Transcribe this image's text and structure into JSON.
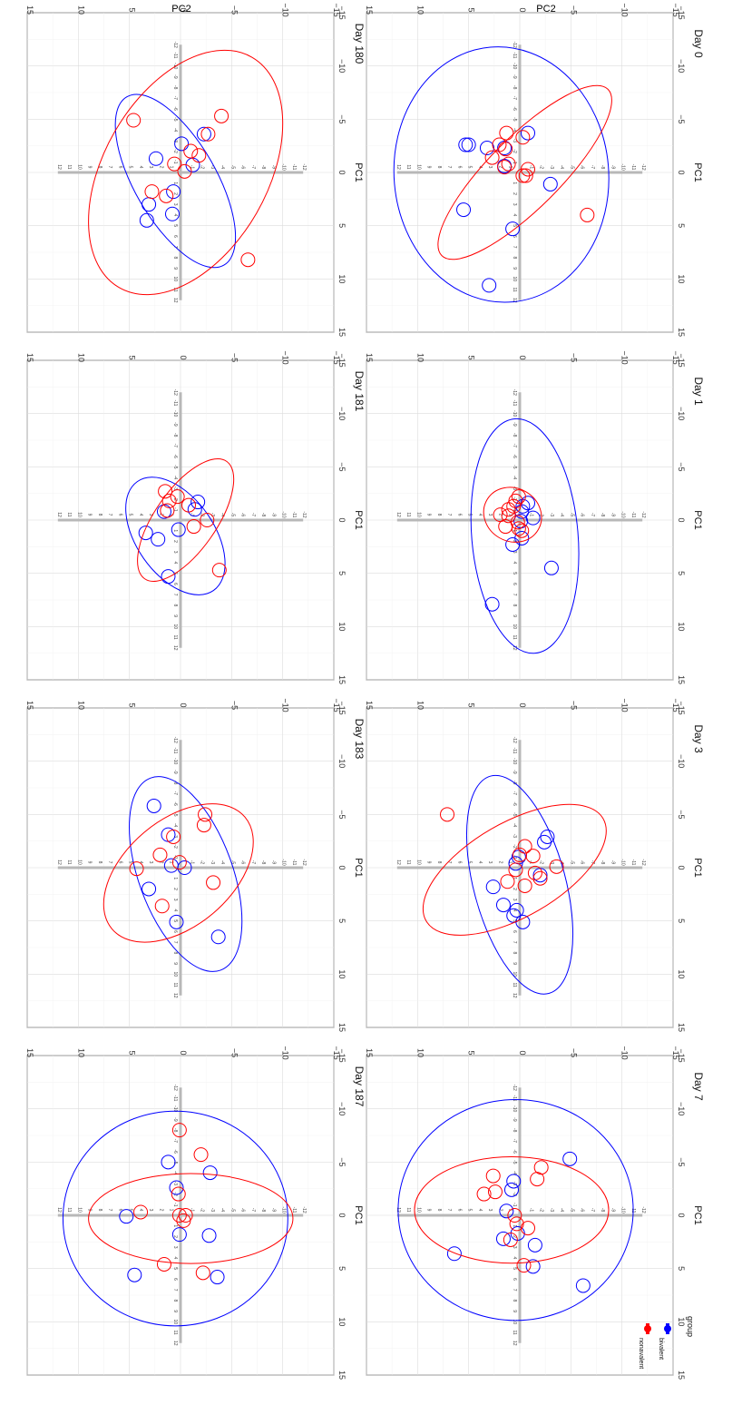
{
  "figure": {
    "ylabel": "PC2",
    "xlabel": "PC1",
    "axis_ticks": [
      "−15",
      "−10",
      "−5",
      "0",
      "5",
      "10",
      "15"
    ],
    "legend": {
      "title": "group",
      "entries": [
        {
          "label": "bivalent",
          "color": "#0000ff"
        },
        {
          "label": "nonavalent",
          "color": "#ff0000"
        }
      ]
    }
  },
  "chart_data": [
    {
      "type": "scatter",
      "title": "Day 0",
      "xlim": [
        -15,
        15
      ],
      "ylim": [
        -15,
        15
      ],
      "series": [
        {
          "name": "bivalent",
          "color": "#0000ff",
          "x": [
            -3.7,
            -2.6,
            -2.3,
            -2.6,
            -0.6,
            -2.3,
            3.5,
            5.3,
            1.1,
            10.6
          ],
          "y": [
            -0.8,
            5.0,
            3.2,
            5.3,
            1.5,
            1.5,
            5.5,
            0.7,
            -3.0,
            3.0
          ],
          "ellipse": {
            "cx": 0.2,
            "cy": 1.8,
            "rx": 12.5,
            "ry": 10.5,
            "angle": 85
          }
        },
        {
          "name": "nonavalent",
          "color": "#ff0000",
          "x": [
            -3.7,
            -3.3,
            -2.6,
            -1.4,
            -0.5,
            -0.3,
            0.3,
            0.3,
            4.0,
            -0.8,
            -2.2
          ],
          "y": [
            1.3,
            -0.3,
            2.0,
            2.7,
            1.5,
            -0.8,
            -0.3,
            -0.6,
            -6.6,
            1.1,
            1.4
          ],
          "ellipse": {
            "cx": 0.0,
            "cy": -0.5,
            "rx": 11.5,
            "ry": 3.5,
            "angle": -45
          }
        }
      ]
    },
    {
      "type": "scatter",
      "title": "Day 1",
      "xlim": [
        -15,
        15
      ],
      "ylim": [
        -15,
        15
      ],
      "series": [
        {
          "name": "bivalent",
          "color": "#0000ff",
          "x": [
            -1.6,
            -1.3,
            -0.8,
            -0.2,
            0.1,
            1.7,
            2.3,
            4.5,
            7.9
          ],
          "y": [
            -0.8,
            -0.3,
            -0.2,
            -1.3,
            -0.1,
            -0.2,
            0.7,
            -3.1,
            2.7
          ],
          "ellipse": {
            "cx": 1.5,
            "cy": -0.5,
            "rx": 11.5,
            "ry": 5.2,
            "angle": 85
          }
        },
        {
          "name": "nonavalent",
          "color": "#ff0000",
          "x": [
            -2.2,
            -1.8,
            -1.0,
            -0.5,
            0.2,
            0.6,
            0.8,
            1.0,
            -1.3,
            -0.4
          ],
          "y": [
            0.1,
            0.4,
            1.1,
            1.9,
            0.2,
            1.4,
            0.1,
            -0.2,
            0.6,
            1.1
          ],
          "ellipse": {
            "cx": -0.5,
            "cy": 0.7,
            "rx": 2.9,
            "ry": 2.6,
            "angle": 30
          }
        }
      ]
    },
    {
      "type": "scatter",
      "title": "Day 3",
      "xlim": [
        -15,
        15
      ],
      "ylim": [
        -15,
        15
      ],
      "series": [
        {
          "name": "bivalent",
          "color": "#0000ff",
          "x": [
            -2.9,
            -2.4,
            -1.0,
            -0.4,
            0.7,
            1.8,
            3.5,
            4.0,
            4.5,
            5.1
          ],
          "y": [
            -2.7,
            -2.4,
            0.1,
            0.4,
            -2.0,
            2.6,
            1.6,
            0.3,
            0.6,
            -0.3
          ],
          "ellipse": {
            "cx": 1.6,
            "cy": 0.0,
            "rx": 11.0,
            "ry": 4.5,
            "angle": 75
          }
        },
        {
          "name": "nonavalent",
          "color": "#ff0000",
          "x": [
            -5.0,
            -2.0,
            -1.1,
            -0.1,
            0.2,
            1.0,
            1.3,
            -1.2,
            0.5,
            1.7
          ],
          "y": [
            7.1,
            -0.5,
            -1.3,
            -3.6,
            0.4,
            -2.0,
            1.2,
            0.0,
            -1.5,
            -0.5
          ],
          "ellipse": {
            "cx": 0.2,
            "cy": 0.5,
            "rx": 10.0,
            "ry": 4.6,
            "angle": -30
          }
        }
      ]
    },
    {
      "type": "scatter",
      "title": "Day 7",
      "xlim": [
        -15,
        15
      ],
      "ylim": [
        -15,
        15
      ],
      "series": [
        {
          "name": "bivalent",
          "color": "#0000ff",
          "x": [
            -5.3,
            -3.2,
            -2.4,
            -0.4,
            1.7,
            2.2,
            2.8,
            3.6,
            4.8,
            6.6
          ],
          "y": [
            -4.9,
            0.6,
            0.8,
            1.3,
            0.2,
            1.6,
            -1.5,
            6.4,
            -1.3,
            -6.2
          ],
          "ellipse": {
            "cx": -0.5,
            "cy": 0.4,
            "rx": 11.5,
            "ry": 10.8,
            "angle": 0
          }
        },
        {
          "name": "nonavalent",
          "color": "#ff0000",
          "x": [
            -4.5,
            -3.7,
            -3.4,
            -2.2,
            0.8,
            2.3,
            4.7,
            -2.0,
            0.0,
            1.2
          ],
          "y": [
            -2.1,
            2.6,
            -1.7,
            2.4,
            0.3,
            0.9,
            -0.4,
            3.5,
            0.5,
            -0.8
          ],
          "ellipse": {
            "cx": -0.5,
            "cy": 0.8,
            "rx": 9.5,
            "ry": 5.2,
            "angle": 0
          }
        }
      ]
    },
    {
      "type": "scatter",
      "title": "Day 180",
      "xlim": [
        -15,
        15
      ],
      "ylim": [
        -15,
        15
      ],
      "series": [
        {
          "name": "bivalent",
          "color": "#0000ff",
          "x": [
            -3.6,
            -2.7,
            -1.3,
            -0.7,
            1.8,
            3.0,
            3.9,
            4.5
          ],
          "y": [
            -2.3,
            -0.1,
            2.4,
            -1.2,
            0.7,
            3.1,
            0.8,
            3.3
          ],
          "ellipse": {
            "cx": 0.8,
            "cy": 0.5,
            "rx": 9.5,
            "ry": 4.0,
            "angle": 60
          }
        },
        {
          "name": "nonavalent",
          "color": "#ff0000",
          "x": [
            -5.3,
            -4.9,
            -3.6,
            -1.6,
            -0.1,
            1.8,
            2.2,
            8.2,
            -2.0,
            -0.8
          ],
          "y": [
            -4.0,
            4.6,
            -2.7,
            -1.8,
            -0.4,
            2.8,
            1.4,
            -6.6,
            -1.0,
            0.6
          ],
          "ellipse": {
            "cx": 0.0,
            "cy": -0.5,
            "rx": 13.0,
            "ry": 8.0,
            "angle": -60
          }
        }
      ]
    },
    {
      "type": "scatter",
      "title": "Day 181",
      "xlim": [
        -15,
        15
      ],
      "ylim": [
        -15,
        15
      ],
      "series": [
        {
          "name": "bivalent",
          "color": "#0000ff",
          "x": [
            -1.7,
            -1.0,
            -0.8,
            0.9,
            1.2,
            1.8,
            5.3
          ],
          "y": [
            -1.7,
            -1.4,
            1.6,
            0.2,
            3.4,
            2.2,
            1.2
          ],
          "ellipse": {
            "cx": 1.5,
            "cy": 0.5,
            "rx": 6.5,
            "ry": 3.8,
            "angle": 55
          }
        },
        {
          "name": "nonavalent",
          "color": "#ff0000",
          "x": [
            -2.7,
            -1.8,
            -1.4,
            0.0,
            0.6,
            -2.2,
            -0.9,
            4.7
          ],
          "y": [
            1.5,
            1.1,
            -0.8,
            -2.6,
            -1.3,
            0.3,
            1.3,
            -3.8
          ],
          "ellipse": {
            "cx": 0.0,
            "cy": -0.5,
            "rx": 7.0,
            "ry": 3.0,
            "angle": -55
          }
        }
      ]
    },
    {
      "type": "scatter",
      "title": "Day 183",
      "xlim": [
        -15,
        15
      ],
      "ylim": [
        -15,
        15
      ],
      "series": [
        {
          "name": "bivalent",
          "color": "#0000ff",
          "x": [
            -5.8,
            -3.1,
            -0.2,
            0.0,
            2.0,
            5.1,
            6.5
          ],
          "y": [
            2.6,
            1.2,
            0.9,
            -0.4,
            3.1,
            0.4,
            -3.7
          ],
          "ellipse": {
            "cx": 0.6,
            "cy": -0.5,
            "rx": 10.0,
            "ry": 4.6,
            "angle": 70
          }
        },
        {
          "name": "nonavalent",
          "color": "#ff0000",
          "x": [
            -5.0,
            -4.0,
            -2.9,
            -1.2,
            -0.5,
            0.1,
            1.4,
            3.6
          ],
          "y": [
            -2.4,
            -2.3,
            0.7,
            2.0,
            0.1,
            4.3,
            -3.2,
            1.8
          ],
          "ellipse": {
            "cx": 0.5,
            "cy": 0.2,
            "rx": 8.5,
            "ry": 5.2,
            "angle": -40
          }
        }
      ]
    },
    {
      "type": "scatter",
      "title": "Day 187",
      "xlim": [
        -15,
        15
      ],
      "ylim": [
        -15,
        15
      ],
      "series": [
        {
          "name": "bivalent",
          "color": "#0000ff",
          "x": [
            -5.0,
            -4.0,
            -2.6,
            0.1,
            1.8,
            1.9,
            5.6,
            5.8
          ],
          "y": [
            1.2,
            -2.9,
            0.4,
            5.3,
            0.1,
            -2.8,
            4.5,
            -3.6
          ],
          "ellipse": {
            "cx": 0.3,
            "cy": 0.5,
            "rx": 11.0,
            "ry": 10.5,
            "angle": 0
          }
        },
        {
          "name": "nonavalent",
          "color": "#ff0000",
          "x": [
            -8.0,
            -5.7,
            -2.0,
            -0.3,
            0.0,
            0.0,
            0.5,
            4.6,
            5.4
          ],
          "y": [
            0.1,
            -2.0,
            0.2,
            3.9,
            0.1,
            -0.5,
            -0.3,
            1.6,
            -2.2
          ],
          "ellipse": {
            "cx": 0.3,
            "cy": -1.0,
            "rx": 10.0,
            "ry": 4.4,
            "angle": 0
          }
        }
      ]
    }
  ]
}
